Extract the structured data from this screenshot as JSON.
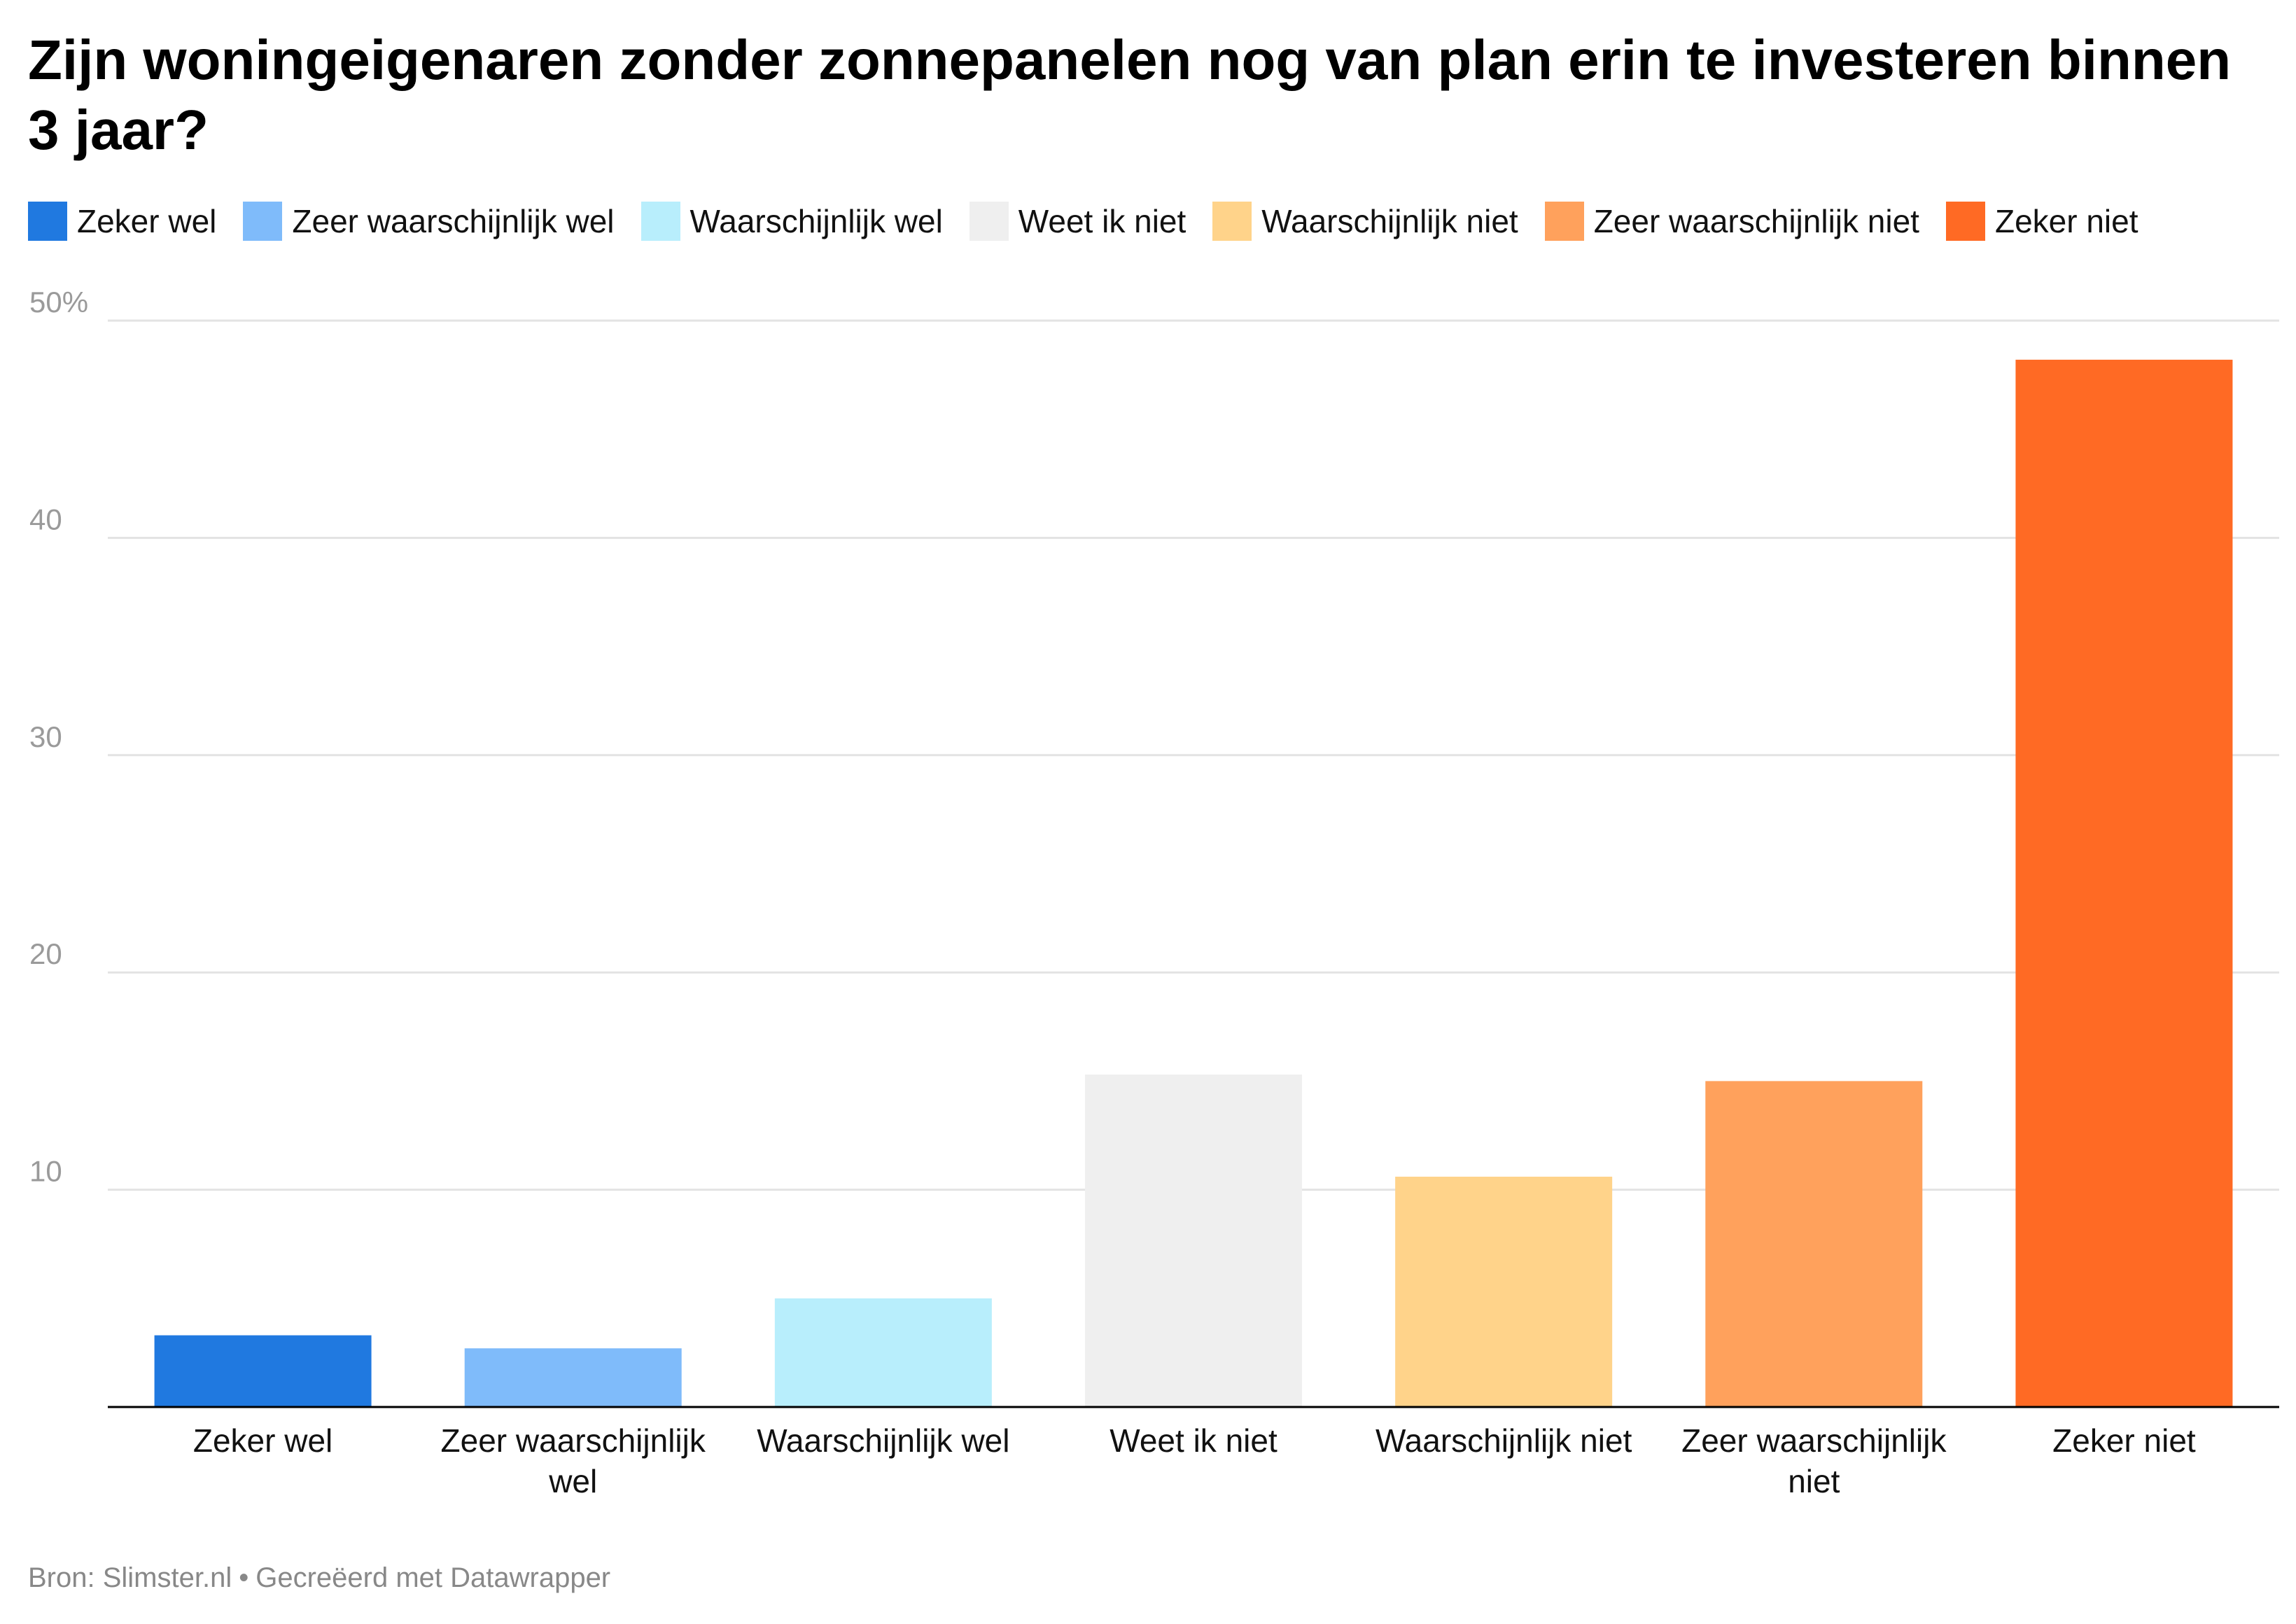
{
  "title": "Zijn woningeigenaren zonder zonnepanelen nog van plan erin te investeren binnen 3 jaar?",
  "footer": {
    "source": "Bron: Slimster.nl",
    "separator": "•",
    "credit": "Gecreëerd met Datawrapper"
  },
  "chart_data": {
    "type": "bar",
    "title": "Zijn woningeigenaren zonder zonnepanelen nog van plan erin te investeren binnen 3 jaar?",
    "categories": [
      "Zeker wel",
      "Zeer waarschijnlijk wel",
      "Waarschijnlijk wel",
      "Weet ik niet",
      "Waarschijnlijk niet",
      "Zeer waarschijnlijk niet",
      "Zeker niet"
    ],
    "category_label_lines": [
      [
        "Zeker wel"
      ],
      [
        "Zeer waarschijnlijk",
        "wel"
      ],
      [
        "Waarschijnlijk wel"
      ],
      [
        "Weet ik niet"
      ],
      [
        "Waarschijnlijk niet"
      ],
      [
        "Zeer waarschijnlijk",
        "niet"
      ],
      [
        "Zeker niet"
      ]
    ],
    "values": [
      3.3,
      2.7,
      5.0,
      15.3,
      10.6,
      15.0,
      48.2
    ],
    "colors": [
      "#2079e0",
      "#7fbbfa",
      "#b8eefc",
      "#efefef",
      "#ffd38a",
      "#ffa15c",
      "#ff6a24"
    ],
    "ylim": [
      0,
      50
    ],
    "yticks": [
      10,
      20,
      30,
      40,
      50
    ],
    "ytick_labels": [
      "10",
      "20",
      "30",
      "40",
      "50%"
    ],
    "grid": true,
    "legend_position": "top-left",
    "xlabel": "",
    "ylabel": ""
  }
}
